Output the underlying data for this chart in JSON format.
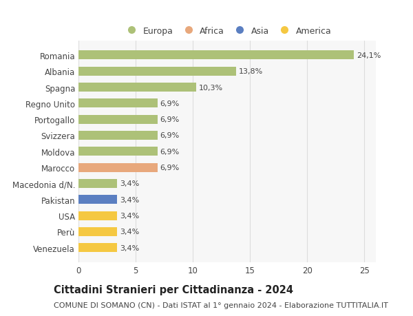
{
  "countries": [
    "Romania",
    "Albania",
    "Spagna",
    "Regno Unito",
    "Portogallo",
    "Svizzera",
    "Moldova",
    "Marocco",
    "Macedonia d/N.",
    "Pakistan",
    "USA",
    "Perù",
    "Venezuela"
  ],
  "values": [
    24.1,
    13.8,
    10.3,
    6.9,
    6.9,
    6.9,
    6.9,
    6.9,
    3.4,
    3.4,
    3.4,
    3.4,
    3.4
  ],
  "labels": [
    "24,1%",
    "13,8%",
    "10,3%",
    "6,9%",
    "6,9%",
    "6,9%",
    "6,9%",
    "6,9%",
    "3,4%",
    "3,4%",
    "3,4%",
    "3,4%",
    "3,4%"
  ],
  "continents": [
    "Europa",
    "Europa",
    "Europa",
    "Europa",
    "Europa",
    "Europa",
    "Europa",
    "Africa",
    "Europa",
    "Asia",
    "America",
    "America",
    "America"
  ],
  "colors": {
    "Europa": "#adc178",
    "Africa": "#e8a87c",
    "Asia": "#5b7fc1",
    "America": "#f5c842"
  },
  "xlim": [
    0,
    26
  ],
  "xticks": [
    0,
    5,
    10,
    15,
    20,
    25
  ],
  "title": "Cittadini Stranieri per Cittadinanza - 2024",
  "subtitle": "COMUNE DI SOMANO (CN) - Dati ISTAT al 1° gennaio 2024 - Elaborazione TUTTITALIA.IT",
  "background_color": "#ffffff",
  "bar_background": "#f7f7f7",
  "grid_color": "#dddddd",
  "text_color": "#444444",
  "label_fontsize": 8,
  "title_fontsize": 10.5,
  "subtitle_fontsize": 8,
  "tick_fontsize": 8.5,
  "legend_fontsize": 9,
  "bar_height": 0.55
}
